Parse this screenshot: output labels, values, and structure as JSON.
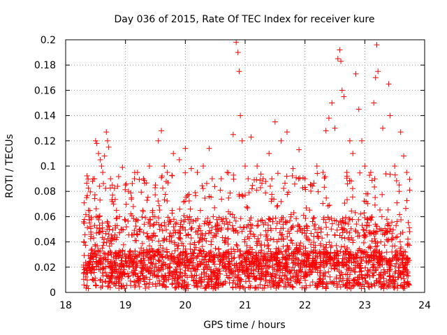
{
  "chart_data": {
    "type": "scatter",
    "title": "Day 036 of 2015, Rate Of TEC Index for receiver kure",
    "xlabel": "GPS time / hours",
    "ylabel": "ROTI / TECUs",
    "xlim": [
      18,
      24
    ],
    "ylim": [
      0,
      0.2
    ],
    "xticks": [
      "18",
      "19",
      "20",
      "21",
      "22",
      "23",
      "24"
    ],
    "yticks": [
      "0",
      "0.02",
      "0.04",
      "0.06",
      "0.08",
      "0.1",
      "0.12",
      "0.14",
      "0.16",
      "0.18",
      "0.2"
    ],
    "grid": true,
    "marker": "+",
    "color": "#ff0000",
    "x_range_data": [
      18.3,
      23.75
    ],
    "series": [
      {
        "points": [
          [
            18.35,
            0.075
          ],
          [
            18.38,
            0.065
          ],
          [
            18.4,
            0.055
          ],
          [
            18.42,
            0.052
          ],
          [
            18.45,
            0.088
          ],
          [
            18.48,
            0.09
          ],
          [
            18.5,
            0.12
          ],
          [
            18.52,
            0.118
          ],
          [
            18.55,
            0.11
          ],
          [
            18.58,
            0.105
          ],
          [
            18.6,
            0.1
          ],
          [
            18.62,
            0.095
          ],
          [
            18.65,
            0.108
          ],
          [
            18.68,
            0.127
          ],
          [
            18.7,
            0.12
          ],
          [
            18.72,
            0.115
          ],
          [
            18.75,
            0.09
          ],
          [
            18.78,
            0.085
          ],
          [
            18.8,
            0.07
          ],
          [
            18.85,
            0.065
          ],
          [
            18.9,
            0.06
          ],
          [
            18.95,
            0.099
          ],
          [
            19.0,
            0.085
          ],
          [
            19.05,
            0.08
          ],
          [
            19.1,
            0.075
          ],
          [
            19.15,
            0.09
          ],
          [
            19.2,
            0.095
          ],
          [
            19.3,
            0.09
          ],
          [
            19.4,
            0.1
          ],
          [
            19.5,
            0.085
          ],
          [
            19.55,
            0.12
          ],
          [
            19.6,
            0.128
          ],
          [
            19.65,
            0.1
          ],
          [
            19.7,
            0.095
          ],
          [
            19.8,
            0.11
          ],
          [
            19.9,
            0.105
          ],
          [
            20.0,
            0.114
          ],
          [
            20.1,
            0.098
          ],
          [
            20.2,
            0.095
          ],
          [
            20.3,
            0.1
          ],
          [
            20.4,
            0.114
          ],
          [
            20.45,
            0.09
          ],
          [
            20.6,
            0.09
          ],
          [
            20.7,
            0.095
          ],
          [
            20.8,
            0.125
          ],
          [
            20.85,
            0.198
          ],
          [
            20.88,
            0.19
          ],
          [
            20.9,
            0.175
          ],
          [
            20.92,
            0.14
          ],
          [
            20.95,
            0.12
          ],
          [
            21.0,
            0.1
          ],
          [
            21.05,
            0.09
          ],
          [
            21.1,
            0.123
          ],
          [
            21.2,
            0.1
          ],
          [
            21.3,
            0.09
          ],
          [
            21.4,
            0.11
          ],
          [
            21.5,
            0.135
          ],
          [
            21.6,
            0.12
          ],
          [
            21.7,
            0.127
          ],
          [
            21.8,
            0.098
          ],
          [
            21.9,
            0.113
          ],
          [
            22.0,
            0.09
          ],
          [
            22.1,
            0.085
          ],
          [
            22.2,
            0.1
          ],
          [
            22.3,
            0.095
          ],
          [
            22.35,
            0.128
          ],
          [
            22.4,
            0.138
          ],
          [
            22.45,
            0.15
          ],
          [
            22.5,
            0.13
          ],
          [
            22.55,
            0.185
          ],
          [
            22.58,
            0.192
          ],
          [
            22.6,
            0.183
          ],
          [
            22.62,
            0.16
          ],
          [
            22.65,
            0.155
          ],
          [
            22.7,
            0.095
          ],
          [
            22.75,
            0.12
          ],
          [
            22.8,
            0.11
          ],
          [
            22.85,
            0.173
          ],
          [
            22.9,
            0.145
          ],
          [
            22.95,
            0.12
          ],
          [
            23.0,
            0.1
          ],
          [
            23.05,
            0.078
          ],
          [
            23.1,
            0.095
          ],
          [
            23.15,
            0.15
          ],
          [
            23.18,
            0.17
          ],
          [
            23.2,
            0.196
          ],
          [
            23.22,
            0.175
          ],
          [
            23.3,
            0.13
          ],
          [
            23.4,
            0.165
          ],
          [
            23.42,
            0.14
          ],
          [
            23.5,
            0.1
          ],
          [
            23.6,
            0.127
          ],
          [
            23.65,
            0.108
          ],
          [
            23.7,
            0.095
          ],
          [
            23.75,
            0.081
          ]
        ]
      }
    ]
  }
}
